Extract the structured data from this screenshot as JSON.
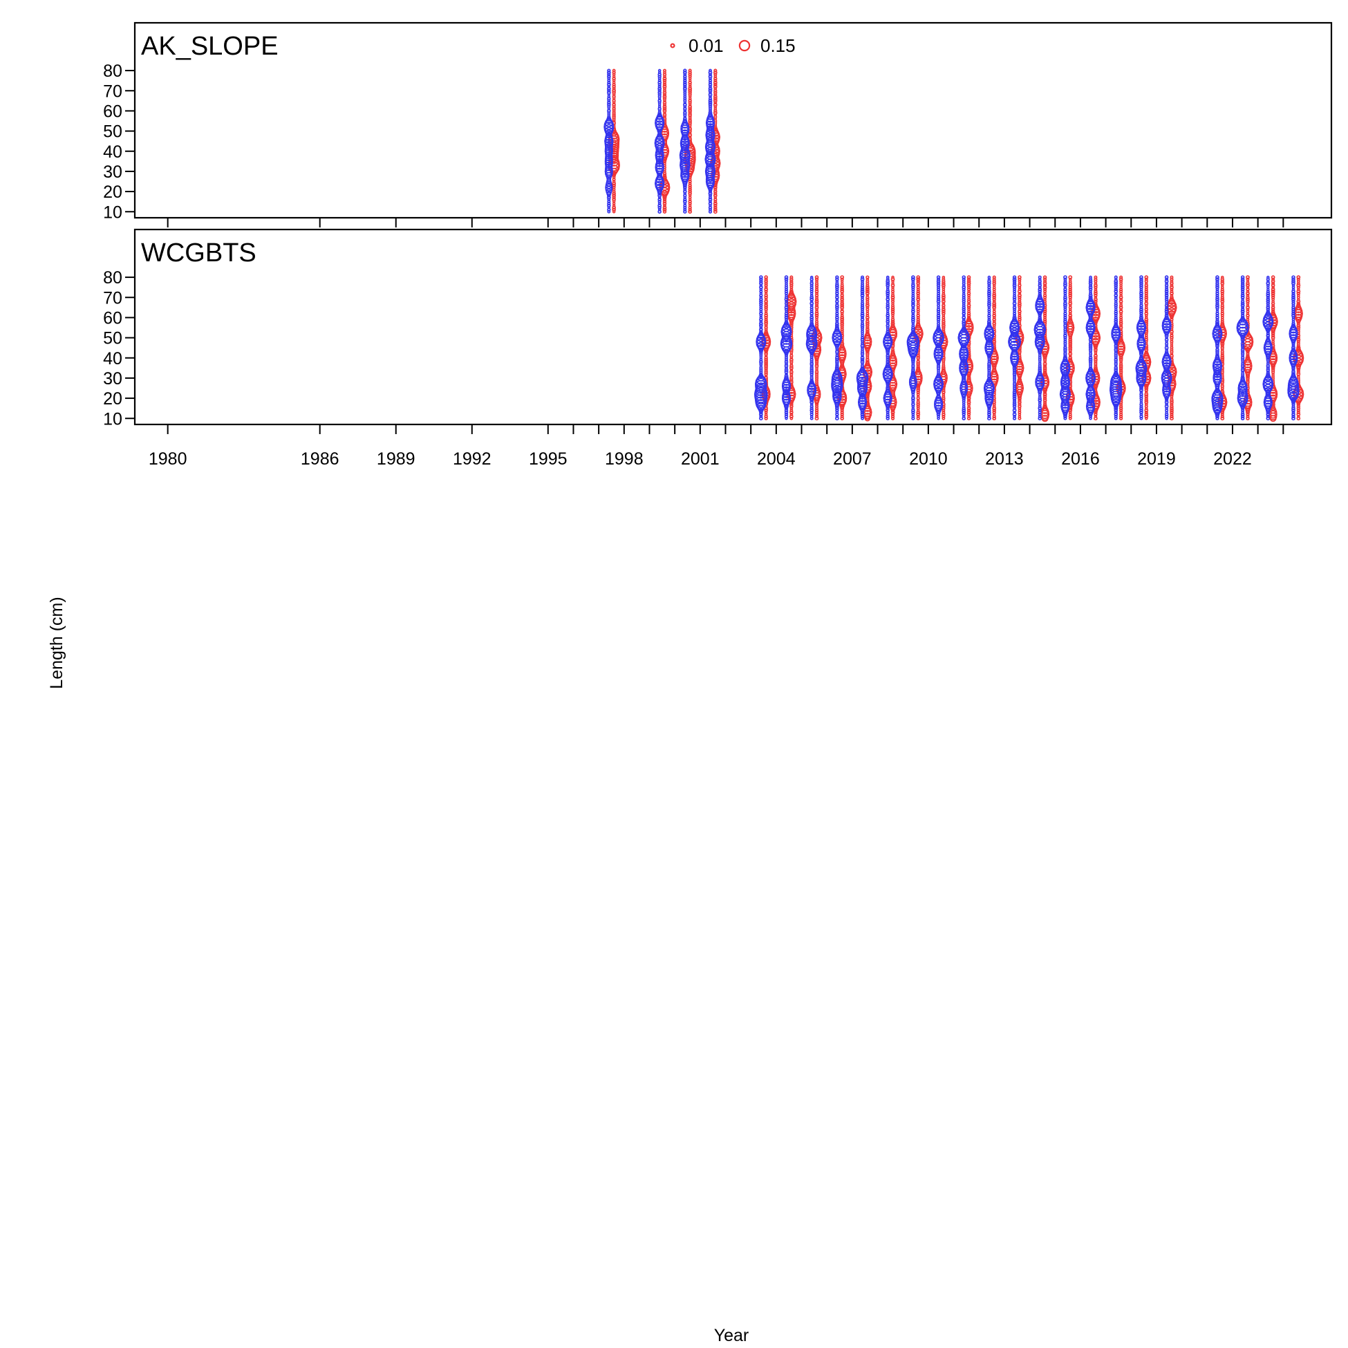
{
  "chart_data": {
    "type": "scatter",
    "xlabel": "Year",
    "ylabel": "Length (cm)",
    "x_ticks": [
      1980,
      1986,
      1989,
      1992,
      1995,
      1998,
      2001,
      2004,
      2007,
      2010,
      2013,
      2016,
      2019,
      2022
    ],
    "y_ticks": [
      10,
      20,
      30,
      40,
      50,
      60,
      70,
      80
    ],
    "xlim": [
      1978.7,
      2025.9
    ],
    "ylim": [
      7,
      82
    ],
    "legend": {
      "position": "top-center",
      "entries": [
        {
          "label": "0.01",
          "value": 0.01
        },
        {
          "label": "0.15",
          "value": 0.15
        }
      ]
    },
    "colors": {
      "female": "#ee3333",
      "male": "#3333ee",
      "frame": "#000000"
    },
    "panels": [
      {
        "title": "AK_SLOPE",
        "years": [
          1997,
          1999,
          2000,
          2001
        ],
        "peaks": {
          "1997": {
            "male": [
              [
                52,
                0.07
              ],
              [
                45,
                0.05
              ],
              [
                40,
                0.04
              ],
              [
                35,
                0.04
              ],
              [
                30,
                0.04
              ],
              [
                22,
                0.03
              ]
            ],
            "female": [
              [
                46,
                0.08
              ],
              [
                42,
                0.06
              ],
              [
                38,
                0.05
              ],
              [
                33,
                0.1
              ]
            ]
          },
          "1999": {
            "male": [
              [
                54,
                0.06
              ],
              [
                44,
                0.07
              ],
              [
                38,
                0.05
              ],
              [
                32,
                0.05
              ],
              [
                24,
                0.06
              ]
            ],
            "female": [
              [
                49,
                0.05
              ],
              [
                40,
                0.05
              ],
              [
                22,
                0.08
              ]
            ]
          },
          "2000": {
            "male": [
              [
                51,
                0.05
              ],
              [
                44,
                0.06
              ],
              [
                38,
                0.08
              ],
              [
                33,
                0.07
              ],
              [
                28,
                0.05
              ]
            ],
            "female": [
              [
                40,
                0.08
              ],
              [
                36,
                0.08
              ],
              [
                32,
                0.05
              ]
            ]
          },
          "2001": {
            "male": [
              [
                54,
                0.05
              ],
              [
                48,
                0.06
              ],
              [
                42,
                0.07
              ],
              [
                36,
                0.08
              ],
              [
                30,
                0.07
              ],
              [
                25,
                0.05
              ]
            ],
            "female": [
              [
                47,
                0.06
              ],
              [
                40,
                0.06
              ],
              [
                34,
                0.07
              ],
              [
                28,
                0.05
              ]
            ]
          }
        }
      },
      {
        "title": "WCGBTS",
        "years": [
          2003,
          2004,
          2005,
          2006,
          2007,
          2008,
          2009,
          2010,
          2011,
          2012,
          2013,
          2014,
          2015,
          2016,
          2017,
          2018,
          2019,
          2021,
          2022,
          2023,
          2024
        ],
        "peaks": {
          "2003": {
            "male": [
              [
                48,
                0.07
              ],
              [
                27,
                0.1
              ],
              [
                22,
                0.12
              ],
              [
                18,
                0.08
              ]
            ],
            "female": [
              [
                48,
                0.06
              ],
              [
                22,
                0.05
              ]
            ]
          },
          "2004": {
            "male": [
              [
                53,
                0.08
              ],
              [
                47,
                0.1
              ],
              [
                26,
                0.05
              ],
              [
                20,
                0.05
              ]
            ],
            "female": [
              [
                68,
                0.07
              ],
              [
                62,
                0.05
              ],
              [
                22,
                0.05
              ]
            ]
          },
          "2005": {
            "male": [
              [
                52,
                0.08
              ],
              [
                47,
                0.09
              ],
              [
                24,
                0.06
              ]
            ],
            "female": [
              [
                50,
                0.08
              ],
              [
                44,
                0.05
              ],
              [
                22,
                0.04
              ]
            ]
          },
          "2006": {
            "male": [
              [
                50,
                0.07
              ],
              [
                30,
                0.07
              ],
              [
                26,
                0.09
              ],
              [
                21,
                0.05
              ]
            ],
            "female": [
              [
                42,
                0.05
              ],
              [
                32,
                0.05
              ],
              [
                20,
                0.06
              ]
            ]
          },
          "2007": {
            "male": [
              [
                30,
                0.1
              ],
              [
                25,
                0.07
              ],
              [
                18,
                0.05
              ]
            ],
            "female": [
              [
                48,
                0.05
              ],
              [
                33,
                0.06
              ],
              [
                26,
                0.05
              ],
              [
                13,
                0.05
              ]
            ]
          },
          "2008": {
            "male": [
              [
                48,
                0.06
              ],
              [
                32,
                0.07
              ],
              [
                20,
                0.05
              ]
            ],
            "female": [
              [
                52,
                0.05
              ],
              [
                38,
                0.05
              ],
              [
                27,
                0.05
              ],
              [
                18,
                0.04
              ]
            ]
          },
          "2009": {
            "male": [
              [
                48,
                0.11
              ],
              [
                44,
                0.06
              ],
              [
                28,
                0.04
              ]
            ],
            "female": [
              [
                52,
                0.07
              ],
              [
                30,
                0.05
              ]
            ]
          },
          "2010": {
            "male": [
              [
                50,
                0.09
              ],
              [
                42,
                0.06
              ],
              [
                27,
                0.07
              ],
              [
                17,
                0.05
              ]
            ],
            "female": [
              [
                48,
                0.05
              ],
              [
                30,
                0.04
              ]
            ]
          },
          "2011": {
            "male": [
              [
                50,
                0.1
              ],
              [
                42,
                0.06
              ],
              [
                35,
                0.06
              ],
              [
                25,
                0.04
              ]
            ],
            "female": [
              [
                55,
                0.06
              ],
              [
                36,
                0.05
              ],
              [
                25,
                0.04
              ]
            ]
          },
          "2012": {
            "male": [
              [
                52,
                0.07
              ],
              [
                45,
                0.05
              ],
              [
                25,
                0.08
              ],
              [
                20,
                0.05
              ]
            ],
            "female": [
              [
                40,
                0.05
              ],
              [
                30,
                0.05
              ]
            ]
          },
          "2013": {
            "male": [
              [
                55,
                0.07
              ],
              [
                48,
                0.12
              ],
              [
                40,
                0.05
              ]
            ],
            "female": [
              [
                50,
                0.05
              ],
              [
                35,
                0.05
              ],
              [
                25,
                0.04
              ]
            ]
          },
          "2014": {
            "male": [
              [
                66,
                0.06
              ],
              [
                54,
                0.1
              ],
              [
                48,
                0.07
              ],
              [
                28,
                0.06
              ]
            ],
            "female": [
              [
                45,
                0.05
              ],
              [
                28,
                0.05
              ],
              [
                12,
                0.05
              ]
            ]
          },
          "2015": {
            "male": [
              [
                35,
                0.07
              ],
              [
                28,
                0.06
              ],
              [
                22,
                0.08
              ],
              [
                16,
                0.05
              ]
            ],
            "female": [
              [
                55,
                0.04
              ],
              [
                35,
                0.05
              ],
              [
                20,
                0.05
              ]
            ]
          },
          "2016": {
            "male": [
              [
                65,
                0.06
              ],
              [
                55,
                0.06
              ],
              [
                30,
                0.07
              ],
              [
                22,
                0.06
              ],
              [
                16,
                0.05
              ]
            ],
            "female": [
              [
                62,
                0.06
              ],
              [
                50,
                0.06
              ],
              [
                30,
                0.05
              ],
              [
                18,
                0.06
              ]
            ]
          },
          "2017": {
            "male": [
              [
                52,
                0.06
              ],
              [
                28,
                0.08
              ],
              [
                24,
                0.1
              ],
              [
                20,
                0.06
              ]
            ],
            "female": [
              [
                45,
                0.05
              ],
              [
                25,
                0.06
              ]
            ]
          },
          "2018": {
            "male": [
              [
                55,
                0.06
              ],
              [
                47,
                0.05
              ],
              [
                35,
                0.09
              ],
              [
                30,
                0.07
              ]
            ],
            "female": [
              [
                38,
                0.06
              ],
              [
                30,
                0.06
              ]
            ]
          },
          "2019": {
            "male": [
              [
                56,
                0.06
              ],
              [
                38,
                0.06
              ],
              [
                30,
                0.08
              ],
              [
                24,
                0.05
              ]
            ],
            "female": [
              [
                65,
                0.07
              ],
              [
                33,
                0.07
              ],
              [
                27,
                0.05
              ]
            ]
          },
          "2021": {
            "male": [
              [
                52,
                0.07
              ],
              [
                36,
                0.06
              ],
              [
                30,
                0.05
              ],
              [
                20,
                0.09
              ],
              [
                16,
                0.06
              ]
            ],
            "female": [
              [
                52,
                0.05
              ],
              [
                18,
                0.06
              ]
            ]
          },
          "2022": {
            "male": [
              [
                55,
                0.11
              ],
              [
                25,
                0.06
              ],
              [
                20,
                0.08
              ]
            ],
            "female": [
              [
                48,
                0.09
              ],
              [
                36,
                0.05
              ],
              [
                18,
                0.05
              ]
            ]
          },
          "2023": {
            "male": [
              [
                58,
                0.08
              ],
              [
                45,
                0.05
              ],
              [
                27,
                0.08
              ],
              [
                18,
                0.05
              ]
            ],
            "female": [
              [
                58,
                0.06
              ],
              [
                40,
                0.05
              ],
              [
                22,
                0.05
              ],
              [
                12,
                0.04
              ]
            ]
          },
          "2024": {
            "male": [
              [
                52,
                0.05
              ],
              [
                40,
                0.05
              ],
              [
                27,
                0.07
              ],
              [
                23,
                0.09
              ]
            ],
            "female": [
              [
                62,
                0.05
              ],
              [
                40,
                0.08
              ],
              [
                22,
                0.08
              ]
            ]
          }
        }
      }
    ]
  }
}
